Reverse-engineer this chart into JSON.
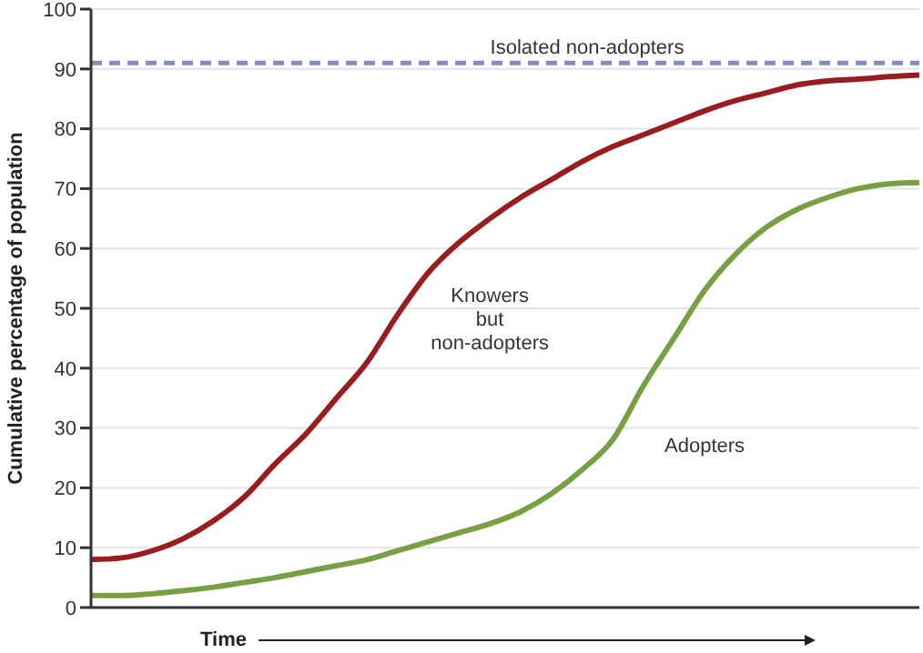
{
  "chart_data": {
    "type": "line",
    "xlabel": "Time",
    "ylabel": "Cumulative percentage of population",
    "categories": [
      null,
      null,
      null,
      null,
      null,
      null,
      null,
      null,
      null,
      null,
      null,
      null,
      null,
      null,
      null,
      null,
      null,
      null,
      null,
      null,
      null,
      null,
      null,
      null,
      null,
      null,
      null,
      null
    ],
    "series": [
      {
        "name": "Knowers but non-adopters",
        "color": "#9b1c1f",
        "values": [
          8,
          8.3,
          9.5,
          11.5,
          14.5,
          18.5,
          24,
          29,
          35,
          41,
          49,
          56,
          61,
          65,
          68.5,
          71.5,
          74.5,
          77,
          79,
          81,
          83,
          84.7,
          86,
          87.3,
          88,
          88.3,
          88.7,
          89
        ]
      },
      {
        "name": "Adopters",
        "color": "#77a043",
        "values": [
          2,
          2,
          2.3,
          2.8,
          3.4,
          4.2,
          5,
          6,
          7,
          8,
          9.5,
          11,
          12.5,
          14,
          16,
          19,
          23,
          28,
          37,
          45,
          53,
          59,
          63.5,
          66.5,
          68.5,
          70,
          70.8,
          71
        ]
      }
    ],
    "ylim": [
      0,
      100
    ],
    "yticks": [
      0,
      10,
      20,
      30,
      40,
      50,
      60,
      70,
      80,
      90,
      100
    ],
    "grid": "y",
    "marker": "none",
    "line_style": "solid",
    "ref_lines": [
      {
        "axis": "y",
        "value": 91,
        "label": "Isolated non-adopters",
        "color": "#7f8fc0",
        "line_style": "dashed"
      }
    ]
  }
}
